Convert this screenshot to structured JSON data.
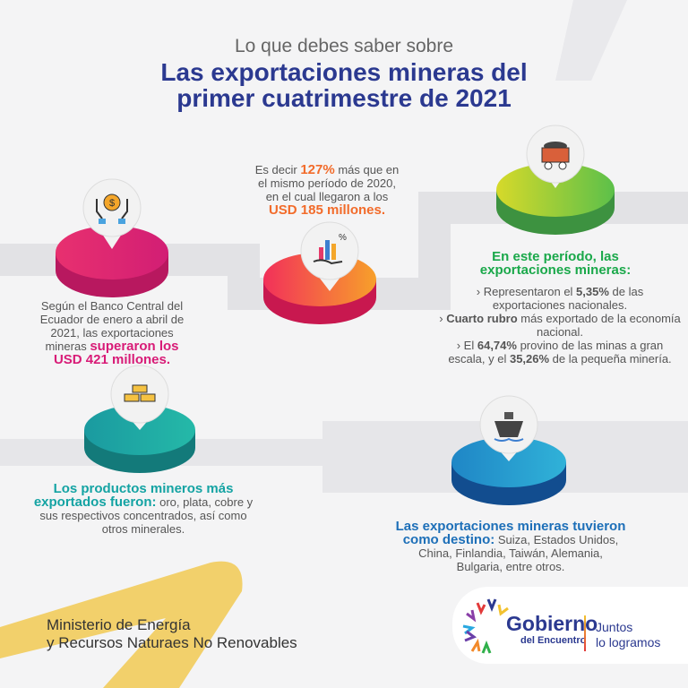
{
  "header": {
    "subtitle": "Lo que debes saber sobre",
    "title_line1": "Las exportaciones mineras del",
    "title_line2": "primer cuatrimestre de 2021"
  },
  "colors": {
    "title": "#2b3990",
    "pink": "#d81b77",
    "orange": "#f26b2a",
    "green": "#1aa84a",
    "teal": "#14a3a3",
    "blue": "#1d6fb8",
    "yellow": "#f2d06b"
  },
  "steps": {
    "banco": {
      "icon": "money-hands-icon",
      "text1": "Según el Banco Central del Ecuador de enero a abril de 2021, las exportaciones mineras ",
      "highlight": "superaron los USD 421 millones."
    },
    "crecimiento": {
      "icon": "growth-chart-hand-icon",
      "pre": "Es decir ",
      "pct": "127%",
      "mid": " más que en el mismo período de 2020, en el cual llegaron a los ",
      "highlight": "USD 185 millones."
    },
    "periodo": {
      "icon": "mine-cart-icon",
      "heading": "En este período, las exportaciones mineras:",
      "b1_pre": "› Representaron el ",
      "b1_bold": "5,35%",
      "b1_post": " de las exportaciones nacionales.",
      "b2_pre": "› ",
      "b2_bold": "Cuarto rubro",
      "b2_post": " más exportado de la economía nacional.",
      "b3_pre": "› El ",
      "b3_bold": "64,74%",
      "b3_mid": " provino de las minas a gran escala, y el ",
      "b3_bold2": "35,26%",
      "b3_post": " de la pequeña minería."
    },
    "productos": {
      "icon": "gold-bars-icon",
      "heading": "Los productos mineros más exportados fueron:",
      "text": " oro, plata, cobre y sus respectivos concentrados, así como otros minerales."
    },
    "destino": {
      "icon": "cargo-ship-icon",
      "heading": "Las exportaciones mineras tuvieron como destino:",
      "text": " Suiza, Estados Unidos, China, Finlandia, Taiwán, Alemania, Bulgaria, entre otros."
    }
  },
  "footer": {
    "ministry_line1": "Ministerio de Energía",
    "ministry_line2": "y Recursos Naturaes No Renovables",
    "logo_main": "Gobierno",
    "logo_sub": "del Encuentro",
    "slogan_line1": "Juntos",
    "slogan_line2": "lo logramos"
  }
}
